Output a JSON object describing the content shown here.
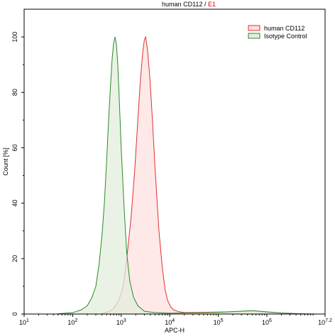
{
  "chart_data": {
    "type": "area",
    "title_main": "human CD112",
    "title_sep": " / ",
    "title_gate": "E1",
    "title_gate_color": "#e00000",
    "xlabel": "APC-H",
    "ylabel": "Count [%]",
    "x_scale": "log10",
    "xlim": [
      10,
      15848931.9
    ],
    "ylim": [
      0,
      110
    ],
    "grid": false,
    "legend_position": "top-right",
    "x_ticks": [
      {
        "base": "10",
        "exp": "1",
        "value": 10
      },
      {
        "base": "10",
        "exp": "2",
        "value": 100
      },
      {
        "base": "10",
        "exp": "3",
        "value": 1000
      },
      {
        "base": "10",
        "exp": "4",
        "value": 10000
      },
      {
        "base": "10",
        "exp": "5",
        "value": 100000
      },
      {
        "base": "10",
        "exp": "6",
        "value": 1000000
      },
      {
        "base": "10",
        "exp": "7.2",
        "value": 15848931.9
      }
    ],
    "y_ticks": [
      {
        "label": "0",
        "value": 0
      },
      {
        "label": "20",
        "value": 20
      },
      {
        "label": "40",
        "value": 40
      },
      {
        "label": "60",
        "value": 60
      },
      {
        "label": "80",
        "value": 80
      },
      {
        "label": "100",
        "value": 100
      }
    ],
    "series": [
      {
        "name": "human CD112",
        "color": "#e03030",
        "fill": "#fde0e0",
        "x": [
          400,
          550,
          700,
          900,
          1100,
          1300,
          1600,
          1900,
          2200,
          2500,
          2800,
          3000,
          3200,
          3500,
          3900,
          4400,
          5000,
          6000,
          7000,
          8000,
          9000,
          10500,
          12000,
          15000,
          20000,
          40000,
          100000,
          300000,
          500000,
          700000,
          1000000,
          2000000,
          5000000,
          10000000
        ],
        "y": [
          0.2,
          0.8,
          2,
          5,
          10,
          20,
          35,
          52,
          70,
          85,
          95,
          99,
          100,
          95,
          85,
          70,
          52,
          30,
          17,
          9,
          5,
          2.5,
          1.5,
          0.9,
          0.5,
          0.6,
          0.7,
          0.9,
          1.1,
          0.9,
          0.6,
          0.3,
          0.1,
          0
        ]
      },
      {
        "name": "Isotype Control",
        "color": "#2a8a2a",
        "fill": "#e3eedc",
        "x": [
          50,
          100,
          150,
          200,
          250,
          300,
          350,
          400,
          450,
          500,
          550,
          600,
          650,
          700,
          750,
          800,
          850,
          900,
          1000,
          1150,
          1300,
          1500,
          1800,
          2200,
          3000,
          5000,
          10000,
          100000,
          500000,
          1000000,
          2000000,
          5000000,
          10000000
        ],
        "y": [
          0.1,
          0.5,
          1.5,
          3,
          6,
          10,
          18,
          28,
          40,
          55,
          70,
          82,
          92,
          98,
          100,
          97,
          90,
          80,
          60,
          38,
          22,
          12,
          6,
          3,
          1,
          0.5,
          0.3,
          0.6,
          1.2,
          0.8,
          0.4,
          0.1,
          0
        ]
      }
    ]
  }
}
